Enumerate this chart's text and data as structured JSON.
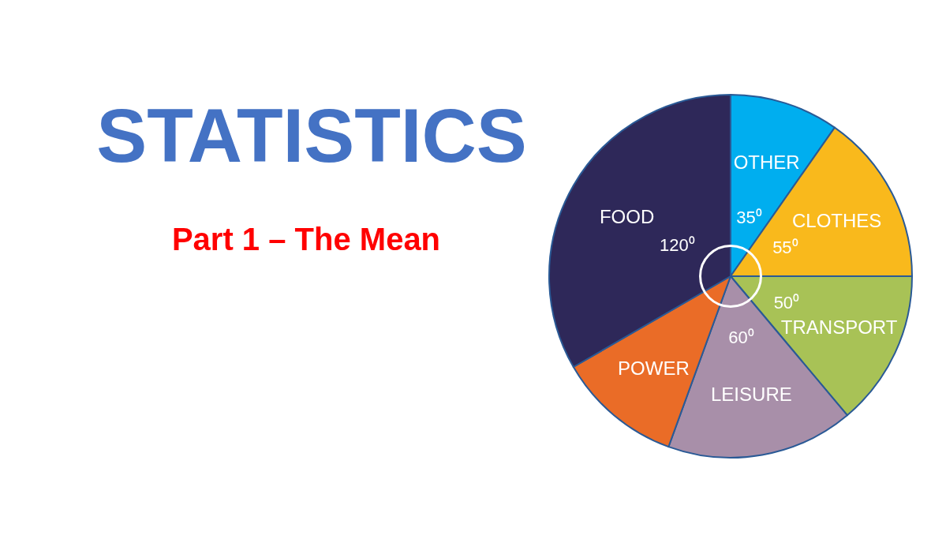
{
  "chart_data": {
    "type": "pie",
    "title": "STATISTICS",
    "subtitle": "Part 1 – The Mean",
    "categories": [
      "OTHER",
      "CLOTHES",
      "TRANSPORT",
      "LEISURE",
      "POWER",
      "FOOD"
    ],
    "values": [
      35,
      55,
      50,
      60,
      40,
      120
    ],
    "colors": [
      "#00aeef",
      "#f9b91c",
      "#a8c256",
      "#a88fa9",
      "#ea6c27",
      "#2e2859"
    ],
    "value_labels": [
      "35⁰",
      "55⁰",
      "50⁰",
      "60⁰",
      null,
      "120⁰"
    ]
  }
}
